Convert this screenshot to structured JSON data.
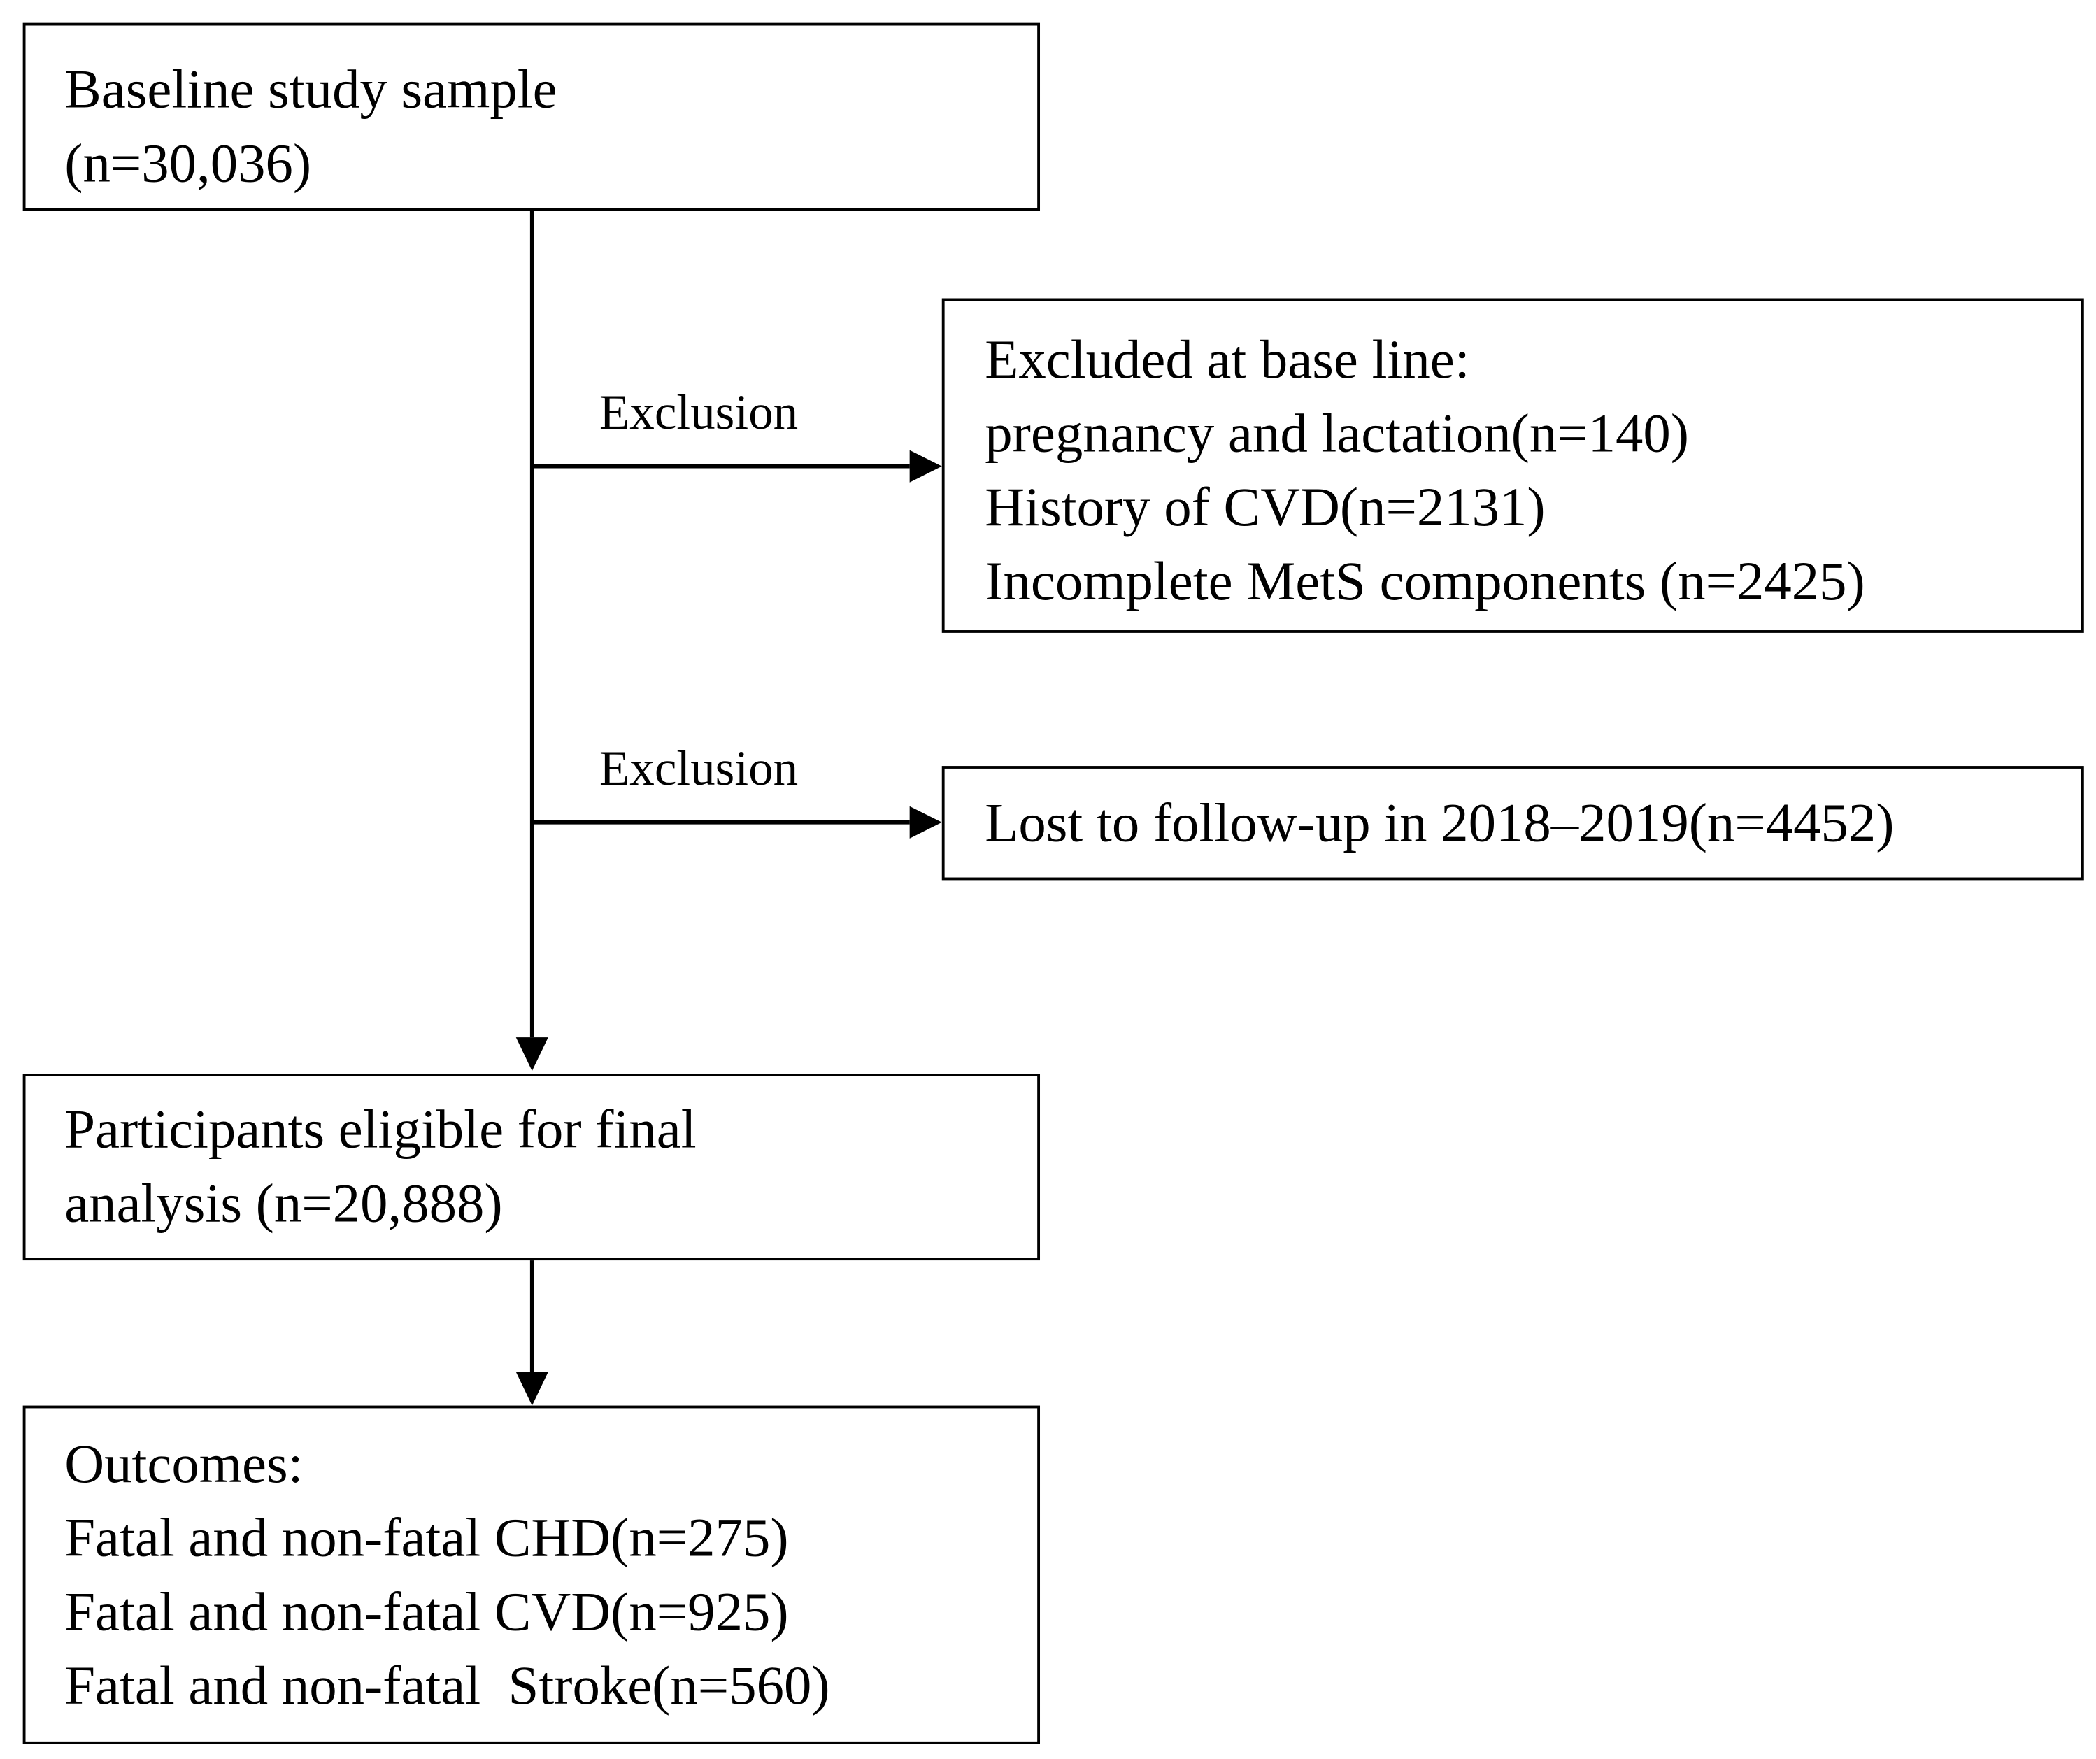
{
  "boxes": {
    "baseline": {
      "lines": [
        "Baseline study sample",
        "(n=30,036)"
      ]
    },
    "excluded_baseline": {
      "lines": [
        "Excluded at base line:",
        "pregnancy and lactation(n=140)",
        "History of CVD(n=2131)",
        "Incomplete MetS components (n=2425)"
      ]
    },
    "lost_followup": {
      "lines": [
        "Lost to follow-up in 2018–2019(n=4452)"
      ]
    },
    "eligible": {
      "lines": [
        "Participants eligible for final",
        "analysis (n=20,888)"
      ]
    },
    "outcomes": {
      "lines": [
        "Outcomes:",
        "Fatal and non-fatal CHD(n=275)",
        "Fatal and non-fatal CVD(n=925)",
        "Fatal and non-fatal  Stroke(n=560)"
      ]
    }
  },
  "edge_labels": [
    "Exclusion",
    "Exclusion"
  ]
}
